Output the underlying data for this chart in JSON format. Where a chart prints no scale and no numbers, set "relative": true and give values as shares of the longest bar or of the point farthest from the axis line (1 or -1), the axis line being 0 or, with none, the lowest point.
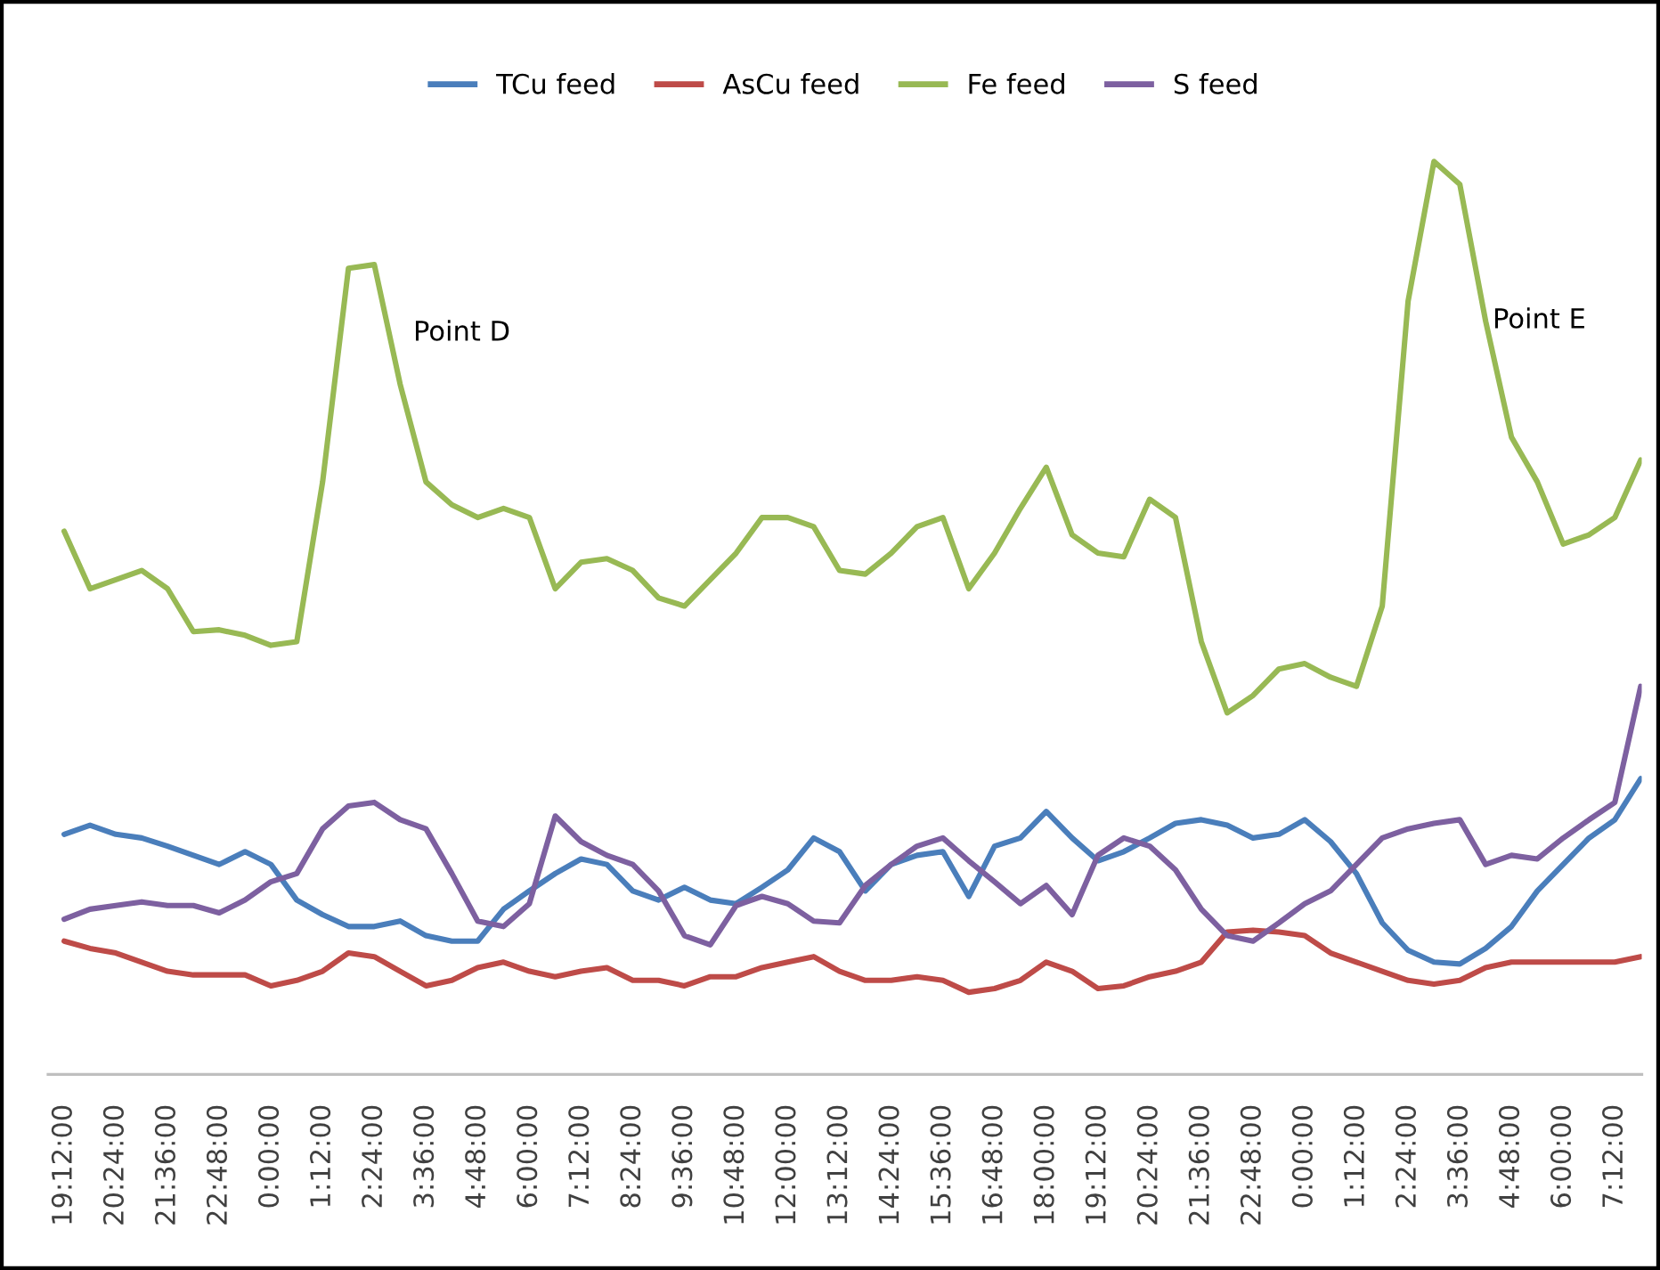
{
  "chart_data": {
    "type": "line",
    "relative": true,
    "legend": "top",
    "grid": false,
    "marker": "none",
    "line_style": "solid",
    "categories": [
      "19:12:00",
      null,
      "20:24:00",
      null,
      "21:36:00",
      null,
      "22:48:00",
      null,
      "0:00:00",
      null,
      "1:12:00",
      null,
      "2:24:00",
      null,
      "3:36:00",
      null,
      "4:48:00",
      null,
      "6:00:00",
      null,
      "7:12:00",
      null,
      "8:24:00",
      null,
      "9:36:00",
      null,
      "10:48:00",
      null,
      "12:00:00",
      null,
      "13:12:00",
      null,
      "14:24:00",
      null,
      "15:36:00",
      null,
      "16:48:00",
      null,
      "18:00:00",
      null,
      "19:12:00",
      null,
      "20:24:00",
      null,
      "21:36:00",
      null,
      "22:48:00",
      null,
      "0:00:00",
      null,
      "1:12:00",
      null,
      "2:24:00",
      null,
      "3:36:00",
      null,
      "4:48:00",
      null,
      "6:00:00",
      null,
      "7:12:00",
      null
    ],
    "series": [
      {
        "name": "TCu feed",
        "color": "#4a7ebb",
        "values": [
          0.263,
          0.273,
          0.263,
          0.259,
          0.25,
          0.24,
          0.23,
          0.244,
          0.23,
          0.191,
          0.175,
          0.162,
          0.162,
          0.168,
          0.152,
          0.146,
          0.146,
          0.181,
          0.201,
          0.22,
          0.236,
          0.23,
          0.201,
          0.191,
          0.205,
          0.191,
          0.187,
          0.205,
          0.224,
          0.259,
          0.244,
          0.201,
          0.23,
          0.24,
          0.244,
          0.195,
          0.25,
          0.259,
          0.288,
          0.259,
          0.234,
          0.244,
          0.259,
          0.275,
          0.279,
          0.273,
          0.259,
          0.263,
          0.279,
          0.255,
          0.22,
          0.166,
          0.136,
          0.123,
          0.121,
          0.138,
          0.162,
          0.201,
          0.23,
          0.259,
          0.279,
          0.324
        ]
      },
      {
        "name": "AsCu feed",
        "color": "#be4b48",
        "values": [
          0.146,
          0.138,
          0.133,
          0.123,
          0.113,
          0.109,
          0.109,
          0.109,
          0.097,
          0.103,
          0.113,
          0.133,
          0.129,
          0.113,
          0.097,
          0.103,
          0.117,
          0.123,
          0.113,
          0.107,
          0.113,
          0.117,
          0.103,
          0.103,
          0.097,
          0.107,
          0.107,
          0.117,
          0.123,
          0.129,
          0.113,
          0.103,
          0.103,
          0.107,
          0.103,
          0.09,
          0.094,
          0.103,
          0.123,
          0.113,
          0.094,
          0.097,
          0.107,
          0.113,
          0.123,
          0.156,
          0.158,
          0.156,
          0.152,
          0.133,
          0.123,
          0.113,
          0.103,
          0.099,
          0.103,
          0.117,
          0.123,
          0.123,
          0.123,
          0.123,
          0.123,
          0.129
        ]
      },
      {
        "name": "Fe feed",
        "color": "#98b954",
        "values": [
          0.595,
          0.532,
          0.542,
          0.552,
          0.532,
          0.485,
          0.487,
          0.481,
          0.47,
          0.474,
          0.649,
          0.883,
          0.887,
          0.756,
          0.649,
          0.624,
          0.61,
          0.62,
          0.61,
          0.532,
          0.561,
          0.565,
          0.552,
          0.522,
          0.513,
          0.542,
          0.571,
          0.61,
          0.61,
          0.6,
          0.552,
          0.548,
          0.571,
          0.6,
          0.61,
          0.532,
          0.571,
          0.62,
          0.665,
          0.591,
          0.571,
          0.567,
          0.63,
          0.61,
          0.474,
          0.396,
          0.415,
          0.444,
          0.45,
          0.435,
          0.425,
          0.513,
          0.847,
          1.0,
          0.975,
          0.825,
          0.698,
          0.649,
          0.581,
          0.591,
          0.61,
          0.673
        ]
      },
      {
        "name": "S feed",
        "color": "#7d60a0",
        "values": [
          0.17,
          0.181,
          0.185,
          0.189,
          0.185,
          0.185,
          0.177,
          0.191,
          0.211,
          0.22,
          0.269,
          0.294,
          0.298,
          0.279,
          0.269,
          0.22,
          0.168,
          0.162,
          0.187,
          0.283,
          0.255,
          0.24,
          0.23,
          0.201,
          0.152,
          0.142,
          0.185,
          0.195,
          0.187,
          0.168,
          0.166,
          0.207,
          0.23,
          0.25,
          0.259,
          0.234,
          0.211,
          0.187,
          0.207,
          0.175,
          0.24,
          0.259,
          0.25,
          0.224,
          0.181,
          0.152,
          0.146,
          0.166,
          0.187,
          0.201,
          0.23,
          0.259,
          0.269,
          0.275,
          0.279,
          0.23,
          0.24,
          0.236,
          0.259,
          0.279,
          0.298,
          0.425
        ]
      }
    ],
    "annotations": [
      "Point D",
      "Point E"
    ]
  }
}
